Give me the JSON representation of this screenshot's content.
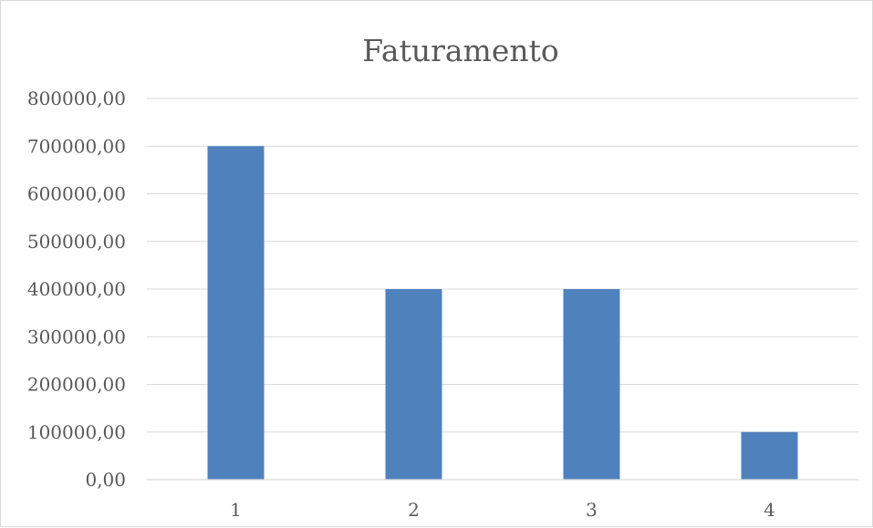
{
  "chart_data": {
    "type": "bar",
    "title": "Faturamento",
    "xlabel": "",
    "ylabel": "",
    "categories": [
      "1",
      "2",
      "3",
      "4"
    ],
    "series": [
      {
        "values": [
          700000,
          400000,
          400000,
          100000
        ],
        "color": "#4f81bd"
      }
    ],
    "ylim": [
      0,
      800000
    ],
    "yticks": [
      0,
      100000,
      200000,
      300000,
      400000,
      500000,
      600000,
      700000,
      800000
    ],
    "ytick_labels": [
      "0,00",
      "100000,00",
      "200000,00",
      "300000,00",
      "400000,00",
      "500000,00",
      "600000,00",
      "700000,00",
      "800000,00"
    ],
    "grid": true,
    "legend": "none"
  }
}
